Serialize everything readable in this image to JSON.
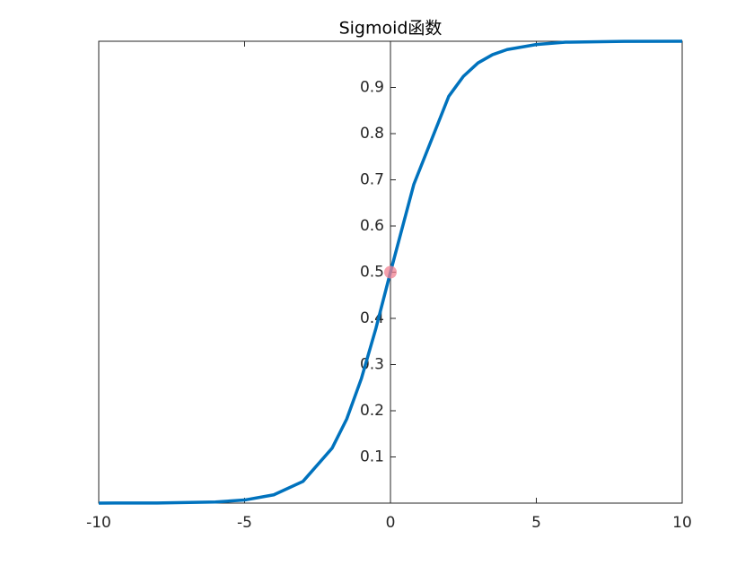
{
  "chart_data": {
    "type": "line",
    "title": "Sigmoid函数",
    "x": [
      -10,
      -8,
      -6,
      -5,
      -4,
      -3,
      -2,
      -1.5,
      -1,
      -0.5,
      0,
      0.8,
      2,
      2.5,
      3,
      3.5,
      4,
      5,
      6,
      8,
      10
    ],
    "series": [
      {
        "color": "#0072bd",
        "values": [
          5e-05,
          0.00034,
          0.0025,
          0.0067,
          0.018,
          0.047,
          0.119,
          0.182,
          0.269,
          0.378,
          0.5,
          0.69,
          0.881,
          0.924,
          0.953,
          0.971,
          0.982,
          0.993,
          0.998,
          0.9997,
          0.99995
        ]
      }
    ],
    "marker": {
      "x": 0,
      "y": 0.5,
      "color": "#f08090"
    },
    "xlim": [
      -10,
      10
    ],
    "ylim": [
      0,
      1
    ],
    "xticks": [
      -10,
      -5,
      0,
      5,
      10
    ],
    "yticks": [
      0.1,
      0.2,
      0.3,
      0.4,
      0.5,
      0.6,
      0.7,
      0.8,
      0.9
    ]
  }
}
